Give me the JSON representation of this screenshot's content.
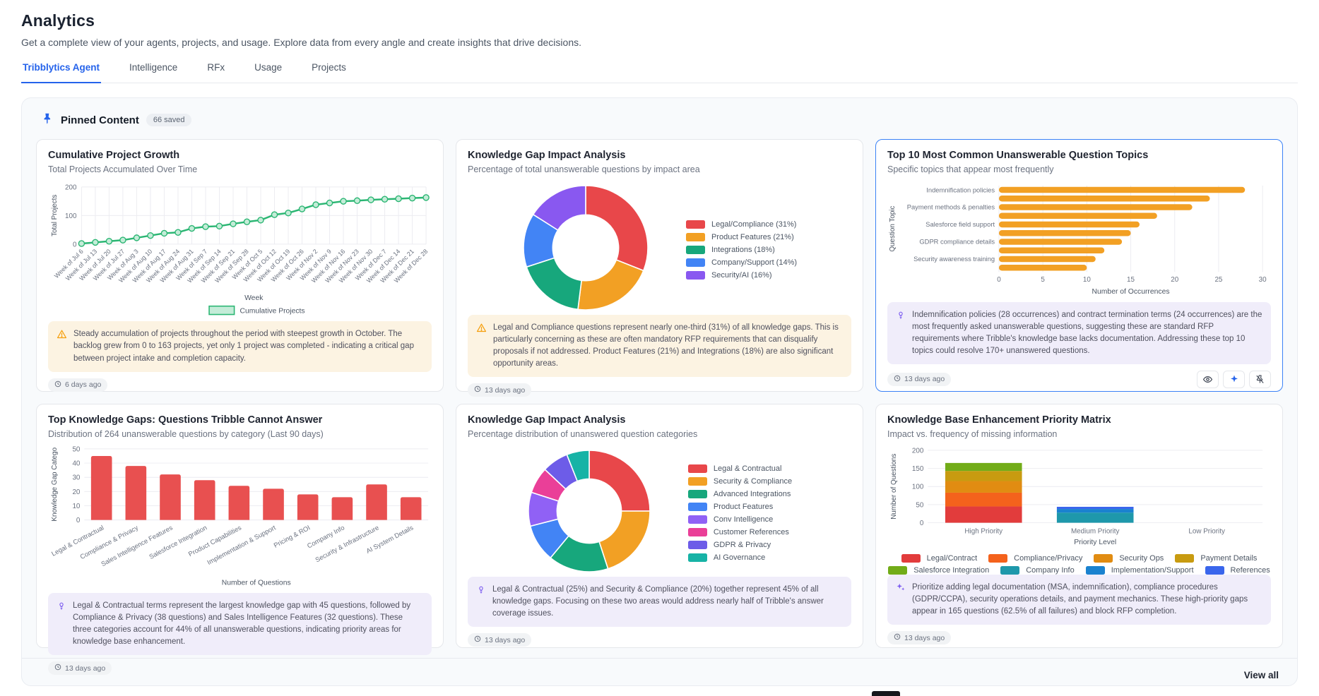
{
  "header": {
    "title": "Analytics",
    "subtitle": "Get a complete view of your agents, projects, and usage. Explore data from every angle and create insights that drive decisions.",
    "tabs": [
      "Tribblytics Agent",
      "Intelligence",
      "RFx",
      "Usage",
      "Projects"
    ],
    "active_tab": "Tribblytics Agent"
  },
  "pinned": {
    "title": "Pinned Content",
    "badge": "66 saved",
    "view_all": "View all"
  },
  "colors": {
    "accent": "#2563eb",
    "line_green": "#2bb673",
    "bar_orange": "#f2a024",
    "bar_red": "#e85050",
    "warning": "#f59e0b",
    "insight_purple": "#7c5cf0"
  },
  "icons": {
    "panel_header": "pushpin-icon",
    "timestamp": "clock-icon",
    "amber_insight": "warning-triangle-icon",
    "lavender_insight": "lightbulb-icon",
    "matrix_insight": "sparkles-icon",
    "card_actions": [
      "eye-icon",
      "ai-sparkle-icon",
      "unpin-icon"
    ]
  },
  "cards": [
    {
      "title": "Cumulative Project Growth",
      "subtitle": "Total Projects Accumulated Over Time",
      "insight": "Steady accumulation of projects throughout the period with steepest growth in October. The backlog grew from 0 to 163 projects, yet only 1 project was completed - indicating a critical gap between project intake and completion capacity.",
      "timestamp": "6 days ago"
    },
    {
      "title": "Knowledge Gap Impact Analysis",
      "subtitle": "Percentage of total unanswerable questions by impact area",
      "insight": "Legal and Compliance questions represent nearly one-third (31%) of all knowledge gaps. This is particularly concerning as these are often mandatory RFP requirements that can disqualify proposals if not addressed. Product Features (21%) and Integrations (18%) are also significant opportunity areas.",
      "timestamp": "13 days ago"
    },
    {
      "title": "Top 10 Most Common Unanswerable Question Topics",
      "subtitle": "Specific topics that appear most frequently",
      "insight": "Indemnification policies (28 occurrences) and contract termination terms (24 occurrences) are the most frequently asked unanswerable questions, suggesting these are standard RFP requirements where Tribble's knowledge base lacks documentation. Addressing these top 10 topics could resolve 170+ unanswered questions.",
      "timestamp": "13 days ago"
    },
    {
      "title": "Top Knowledge Gaps: Questions Tribble Cannot Answer",
      "subtitle": "Distribution of 264 unanswerable questions by category (Last 90 days)",
      "insight": "Legal & Contractual terms represent the largest knowledge gap with 45 questions, followed by Compliance & Privacy (38 questions) and Sales Intelligence Features (32 questions). These three categories account for 44% of all unanswerable questions, indicating priority areas for knowledge base enhancement.",
      "timestamp": "13 days ago"
    },
    {
      "title": "Knowledge Gap Impact Analysis",
      "subtitle": "Percentage distribution of unanswered question categories",
      "insight": "Legal & Contractual (25%) and Security & Compliance (20%) together represent 45% of all knowledge gaps. Focusing on these two areas would address nearly half of Tribble's answer coverage issues.",
      "timestamp": "13 days ago"
    },
    {
      "title": "Knowledge Base Enhancement Priority Matrix",
      "subtitle": "Impact vs. frequency of missing information",
      "insight": "Prioritize adding legal documentation (MSA, indemnification), compliance procedures (GDPR/CCPA), security operations details, and payment mechanics. These high-priority gaps appear in 165 questions (62.5% of all failures) and block RFP completion.",
      "timestamp": "13 days ago"
    }
  ],
  "chart_data": [
    {
      "type": "line",
      "title": "Cumulative Project Growth",
      "x": [
        "Week of Jul 6",
        "Week of Jul 13",
        "Week of Jul 20",
        "Week of Jul 27",
        "Week of Aug 3",
        "Week of Aug 10",
        "Week of Aug 17",
        "Week of Aug 24",
        "Week of Aug 31",
        "Week of Sep 7",
        "Week of Sep 14",
        "Week of Sep 21",
        "Week of Sep 28",
        "Week of Oct 5",
        "Week of Oct 12",
        "Week of Oct 19",
        "Week of Oct 26",
        "Week of Nov 2",
        "Week of Nov 9",
        "Week of Nov 16",
        "Week of Nov 23",
        "Week of Nov 30",
        "Week of Dec 7",
        "Week of Dec 14",
        "Week of Dec 21",
        "Week of Dec 28"
      ],
      "values": [
        2,
        6,
        10,
        14,
        22,
        30,
        38,
        41,
        55,
        61,
        63,
        71,
        78,
        84,
        103,
        109,
        123,
        138,
        144,
        150,
        152,
        155,
        157,
        159,
        161,
        163
      ],
      "xlabel": "Week",
      "ylabel": "Total Projects",
      "ylim": [
        0,
        200
      ],
      "yticks": [
        0,
        100,
        200
      ],
      "legend": [
        "Cumulative Projects"
      ],
      "legend_position": "bottom",
      "grid": true,
      "color": "#2bb673"
    },
    {
      "type": "pie",
      "donut": true,
      "labels": [
        "Legal/Compliance (31%)",
        "Product Features (21%)",
        "Integrations (18%)",
        "Company/Support (14%)",
        "Security/AI (16%)"
      ],
      "values": [
        31,
        21,
        18,
        14,
        16
      ],
      "colors": [
        "#e8474a",
        "#f2a024",
        "#17a77c",
        "#4284f5",
        "#8958f0"
      ],
      "legend_position": "right"
    },
    {
      "type": "bar",
      "orientation": "horizontal",
      "categories": [
        "Indemnification policies",
        "",
        "Payment methods & penalties",
        "",
        "Salesforce field support",
        "",
        "GDPR compliance details",
        "",
        "Security awareness training",
        ""
      ],
      "values": [
        28,
        24,
        22,
        18,
        16,
        15,
        14,
        12,
        11,
        10
      ],
      "xlabel": "Number of Occurrences",
      "ylabel": "Question Topic",
      "xlim": [
        0,
        30
      ],
      "xticks": [
        0,
        5,
        10,
        15,
        20,
        25,
        30
      ],
      "grid": true,
      "color": "#f2a024"
    },
    {
      "type": "bar",
      "orientation": "vertical",
      "categories": [
        "Legal & Contractual",
        "Compliance & Privacy",
        "Sales Intelligence Features",
        "Salesforce Integration",
        "Product Capabilities",
        "Implementation & Support",
        "Pricing & ROI",
        "Company Info",
        "Security & Infrastructure",
        "AI System Details"
      ],
      "values": [
        45,
        38,
        32,
        28,
        24,
        22,
        18,
        16,
        25,
        16
      ],
      "xlabel": "Number of Questions",
      "ylabel": "Knowledge Gap Catego",
      "ylim": [
        0,
        50
      ],
      "yticks": [
        0,
        10,
        20,
        30,
        40,
        50
      ],
      "grid": true,
      "color": "#e85050"
    },
    {
      "type": "pie",
      "donut": true,
      "labels": [
        "Legal & Contractual",
        "Security & Compliance",
        "Advanced Integrations",
        "Product Features",
        "Conv Intelligence",
        "Customer References",
        "GDPR & Privacy",
        "AI Governance"
      ],
      "values": [
        25,
        20,
        16,
        10,
        9,
        7,
        7,
        6
      ],
      "colors": [
        "#e8474a",
        "#f2a024",
        "#17a77c",
        "#4284f5",
        "#9061f5",
        "#ea3f98",
        "#6d5ce8",
        "#17b3a6"
      ],
      "legend_position": "right"
    },
    {
      "type": "bar",
      "stacked": true,
      "categories": [
        "High Priority",
        "Medium Priority",
        "Low Priority"
      ],
      "series": [
        {
          "name": "Legal/Contract",
          "color": "#e23c3c",
          "values": [
            45,
            0,
            0
          ]
        },
        {
          "name": "Compliance/Privacy",
          "color": "#f4621c",
          "values": [
            38,
            0,
            0
          ]
        },
        {
          "name": "Security Ops",
          "color": "#e18c12",
          "values": [
            32,
            0,
            0
          ]
        },
        {
          "name": "Payment Details",
          "color": "#c89b10",
          "values": [
            28,
            0,
            0
          ]
        },
        {
          "name": "Salesforce Integration",
          "color": "#72ac18",
          "values": [
            22,
            0,
            0
          ]
        },
        {
          "name": "Company Info",
          "color": "#1e98ab",
          "values": [
            0,
            28,
            0
          ]
        },
        {
          "name": "Implementation/Support",
          "color": "#1a82cf",
          "values": [
            0,
            10,
            0
          ]
        },
        {
          "name": "References",
          "color": "#3a66ec",
          "values": [
            0,
            6,
            0
          ]
        }
      ],
      "xlabel": "Priority Level",
      "ylabel": "Number of Questions",
      "ylim": [
        0,
        200
      ],
      "yticks": [
        0,
        50,
        100,
        150,
        200
      ],
      "grid": true,
      "legend_position": "bottom"
    }
  ]
}
